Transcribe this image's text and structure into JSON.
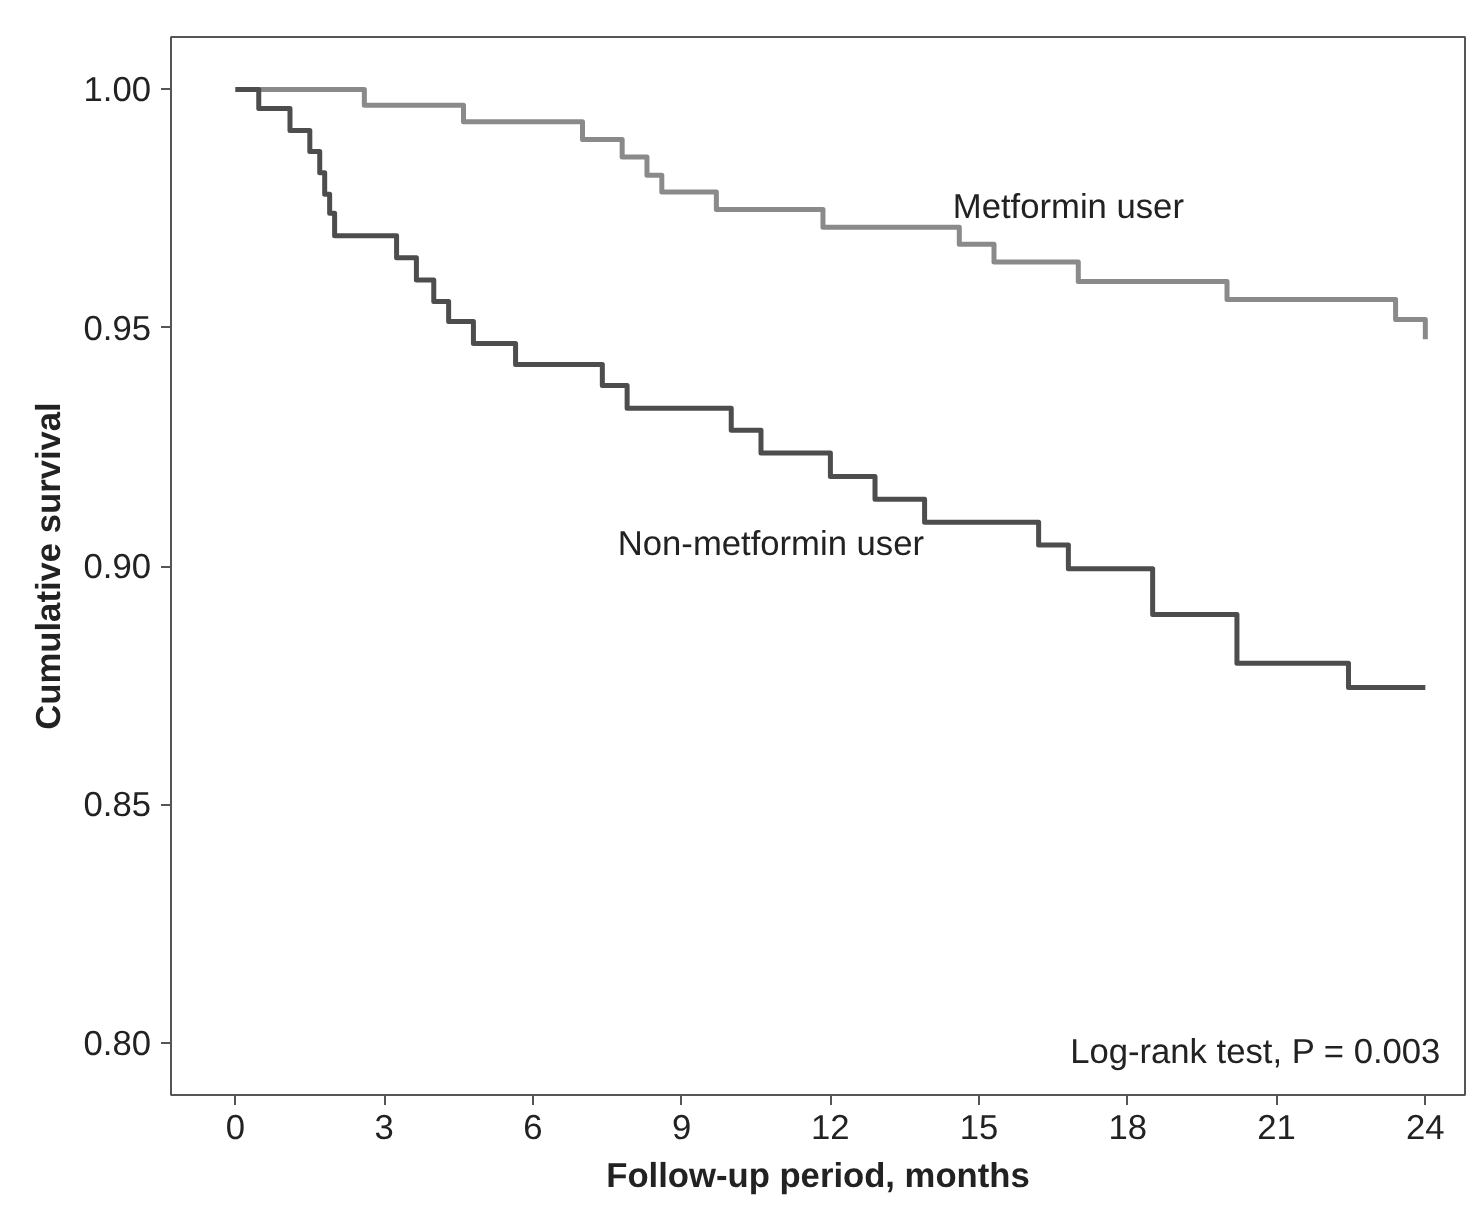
{
  "chart_data": {
    "type": "step",
    "xlabel": "Follow-up period, months",
    "ylabel": "Cumulative survival",
    "series": [
      {
        "name": "Metformin user",
        "color": "#8a8a8a",
        "x": [
          0,
          2.6,
          4.6,
          7.0,
          7.8,
          8.3,
          8.6,
          9.7,
          11.85,
          14.6,
          15.3,
          17.0,
          20.0,
          23.4,
          24.0
        ],
        "values": [
          1.0,
          0.9967,
          0.9932,
          0.9895,
          0.9858,
          0.982,
          0.9785,
          0.9748,
          0.9711,
          0.9675,
          0.9638,
          0.9597,
          0.9559,
          0.9517,
          0.9476
        ]
      },
      {
        "name": "Non-metformin user",
        "color": "#4d4d4d",
        "x": [
          0,
          0.47,
          1.1,
          1.5,
          1.7,
          1.8,
          1.9,
          2.0,
          3.25,
          3.65,
          4.0,
          4.3,
          4.8,
          5.65,
          7.4,
          7.9,
          10.0,
          10.6,
          12.0,
          12.9,
          13.9,
          16.2,
          16.8,
          18.5,
          20.2,
          22.45,
          24.0
        ],
        "values": [
          1.0,
          0.996,
          0.9914,
          0.987,
          0.9825,
          0.978,
          0.974,
          0.9693,
          0.9647,
          0.96,
          0.9555,
          0.9513,
          0.9467,
          0.9423,
          0.9379,
          0.9331,
          0.9285,
          0.9237,
          0.9188,
          0.914,
          0.9092,
          0.9044,
          0.8994,
          0.8898,
          0.8796,
          0.8745,
          0.8745
        ]
      }
    ],
    "annotations": [
      "Log-rank test, P = 0.003"
    ],
    "xlim": [
      -1.3,
      24.8
    ],
    "ylim": [
      0.789,
      1.011
    ],
    "xticks": [
      0,
      3,
      6,
      9,
      12,
      15,
      18,
      21,
      24
    ],
    "yticks": [
      {
        "value": 0.8,
        "label": "0.80"
      },
      {
        "value": 0.85,
        "label": "0.85"
      },
      {
        "value": 0.9,
        "label": "0.90"
      },
      {
        "value": 0.95,
        "label": "0.95"
      },
      {
        "value": 1.0,
        "label": "1.00"
      }
    ],
    "grid": false,
    "legend": false
  }
}
